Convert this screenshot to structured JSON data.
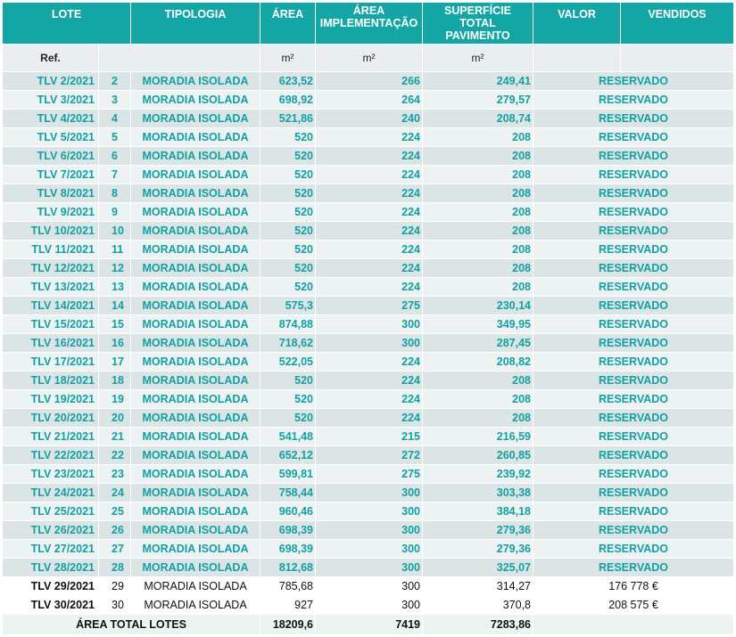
{
  "headers": {
    "lote": "LOTE",
    "tipologia": "TIPOLOGIA",
    "area": "ÁREA",
    "implementacao": "ÁREA IMPLEMENTAÇÃO",
    "superficie": "SUPERFÍCIE TOTAL PAVIMENTO",
    "valor": "VALOR",
    "vendidos": "VENDIDOS"
  },
  "units": {
    "ref": "Ref.",
    "area": "m²",
    "implementacao": "m²",
    "superficie": "m²"
  },
  "rows": [
    {
      "lote": "TLV 2/2021",
      "n": "2",
      "tipologia": "MORADIA ISOLADA",
      "area": "623,52",
      "impl": "266",
      "sup": "249,41",
      "status": "RESERVADO",
      "highlight": true
    },
    {
      "lote": "TLV 3/2021",
      "n": "3",
      "tipologia": "MORADIA ISOLADA",
      "area": "698,92",
      "impl": "264",
      "sup": "279,57",
      "status": "RESERVADO",
      "highlight": true
    },
    {
      "lote": "TLV 4/2021",
      "n": "4",
      "tipologia": "MORADIA ISOLADA",
      "area": "521,86",
      "impl": "240",
      "sup": "208,74",
      "status": "RESERVADO",
      "highlight": true
    },
    {
      "lote": "TLV 5/2021",
      "n": "5",
      "tipologia": "MORADIA ISOLADA",
      "area": "520",
      "impl": "224",
      "sup": "208",
      "status": "RESERVADO",
      "highlight": true
    },
    {
      "lote": "TLV 6/2021",
      "n": "6",
      "tipologia": "MORADIA ISOLADA",
      "area": "520",
      "impl": "224",
      "sup": "208",
      "status": "RESERVADO",
      "highlight": true
    },
    {
      "lote": "TLV 7/2021",
      "n": "7",
      "tipologia": "MORADIA ISOLADA",
      "area": "520",
      "impl": "224",
      "sup": "208",
      "status": "RESERVADO",
      "highlight": true
    },
    {
      "lote": "TLV 8/2021",
      "n": "8",
      "tipologia": "MORADIA ISOLADA",
      "area": "520",
      "impl": "224",
      "sup": "208",
      "status": "RESERVADO",
      "highlight": true
    },
    {
      "lote": "TLV 9/2021",
      "n": "9",
      "tipologia": "MORADIA ISOLADA",
      "area": "520",
      "impl": "224",
      "sup": "208",
      "status": "RESERVADO",
      "highlight": true
    },
    {
      "lote": "TLV 10/2021",
      "n": "10",
      "tipologia": "MORADIA ISOLADA",
      "area": "520",
      "impl": "224",
      "sup": "208",
      "status": "RESERVADO",
      "highlight": true
    },
    {
      "lote": "TLV 11/2021",
      "n": "11",
      "tipologia": "MORADIA ISOLADA",
      "area": "520",
      "impl": "224",
      "sup": "208",
      "status": "RESERVADO",
      "highlight": true
    },
    {
      "lote": "TLV 12/2021",
      "n": "12",
      "tipologia": "MORADIA ISOLADA",
      "area": "520",
      "impl": "224",
      "sup": "208",
      "status": "RESERVADO",
      "highlight": true
    },
    {
      "lote": "TLV 13/2021",
      "n": "13",
      "tipologia": "MORADIA ISOLADA",
      "area": "520",
      "impl": "224",
      "sup": "208",
      "status": "RESERVADO",
      "highlight": true
    },
    {
      "lote": "TLV 14/2021",
      "n": "14",
      "tipologia": "MORADIA ISOLADA",
      "area": "575,3",
      "impl": "275",
      "sup": "230,14",
      "status": "RESERVADO",
      "highlight": true
    },
    {
      "lote": "TLV 15/2021",
      "n": "15",
      "tipologia": "MORADIA ISOLADA",
      "area": "874,88",
      "impl": "300",
      "sup": "349,95",
      "status": "RESERVADO",
      "highlight": true
    },
    {
      "lote": "TLV 16/2021",
      "n": "16",
      "tipologia": "MORADIA ISOLADA",
      "area": "718,62",
      "impl": "300",
      "sup": "287,45",
      "status": "RESERVADO",
      "highlight": true
    },
    {
      "lote": "TLV 17/2021",
      "n": "17",
      "tipologia": "MORADIA ISOLADA",
      "area": "522,05",
      "impl": "224",
      "sup": "208,82",
      "status": "RESERVADO",
      "highlight": true
    },
    {
      "lote": "TLV 18/2021",
      "n": "18",
      "tipologia": "MORADIA ISOLADA",
      "area": "520",
      "impl": "224",
      "sup": "208",
      "status": "RESERVADO",
      "highlight": true
    },
    {
      "lote": "TLV 19/2021",
      "n": "19",
      "tipologia": "MORADIA ISOLADA",
      "area": "520",
      "impl": "224",
      "sup": "208",
      "status": "RESERVADO",
      "highlight": true
    },
    {
      "lote": "TLV 20/2021",
      "n": "20",
      "tipologia": "MORADIA ISOLADA",
      "area": "520",
      "impl": "224",
      "sup": "208",
      "status": "RESERVADO",
      "highlight": true
    },
    {
      "lote": "TLV 21/2021",
      "n": "21",
      "tipologia": "MORADIA ISOLADA",
      "area": "541,48",
      "impl": "215",
      "sup": "216,59",
      "status": "RESERVADO",
      "highlight": true
    },
    {
      "lote": "TLV 22/2021",
      "n": "22",
      "tipologia": "MORADIA ISOLADA",
      "area": "652,12",
      "impl": "272",
      "sup": "260,85",
      "status": "RESERVADO",
      "highlight": true
    },
    {
      "lote": "TLV 23/2021",
      "n": "23",
      "tipologia": "MORADIA ISOLADA",
      "area": "599,81",
      "impl": "275",
      "sup": "239,92",
      "status": "RESERVADO",
      "highlight": true
    },
    {
      "lote": "TLV 24/2021",
      "n": "24",
      "tipologia": "MORADIA ISOLADA",
      "area": "758,44",
      "impl": "300",
      "sup": "303,38",
      "status": "RESERVADO",
      "highlight": true
    },
    {
      "lote": "TLV 25/2021",
      "n": "25",
      "tipologia": "MORADIA ISOLADA",
      "area": "960,46",
      "impl": "300",
      "sup": "384,18",
      "status": "RESERVADO",
      "highlight": true
    },
    {
      "lote": "TLV 26/2021",
      "n": "26",
      "tipologia": "MORADIA ISOLADA",
      "area": "698,39",
      "impl": "300",
      "sup": "279,36",
      "status": "RESERVADO",
      "highlight": true
    },
    {
      "lote": "TLV 27/2021",
      "n": "27",
      "tipologia": "MORADIA ISOLADA",
      "area": "698,39",
      "impl": "300",
      "sup": "279,36",
      "status": "RESERVADO",
      "highlight": true
    },
    {
      "lote": "TLV 28/2021",
      "n": "28",
      "tipologia": "MORADIA ISOLADA",
      "area": "812,68",
      "impl": "300",
      "sup": "325,07",
      "status": "RESERVADO",
      "highlight": true
    },
    {
      "lote": "TLV 29/2021",
      "n": "29",
      "tipologia": "MORADIA ISOLADA",
      "area": "785,68",
      "impl": "300",
      "sup": "314,27",
      "status": "176 778 €",
      "highlight": false
    },
    {
      "lote": "TLV 30/2021",
      "n": "30",
      "tipologia": "MORADIA ISOLADA",
      "area": "927",
      "impl": "300",
      "sup": "370,8",
      "status": "208 575 €",
      "highlight": false
    }
  ],
  "total": {
    "label": "ÁREA TOTAL LOTES",
    "area": "18209,6",
    "impl": "7419",
    "sup": "7283,86"
  },
  "colors": {
    "header": "#14a5a5",
    "accent_text": "#13a0a3",
    "row_light": "#edf2f3",
    "row_dark": "#dbe5e6"
  }
}
